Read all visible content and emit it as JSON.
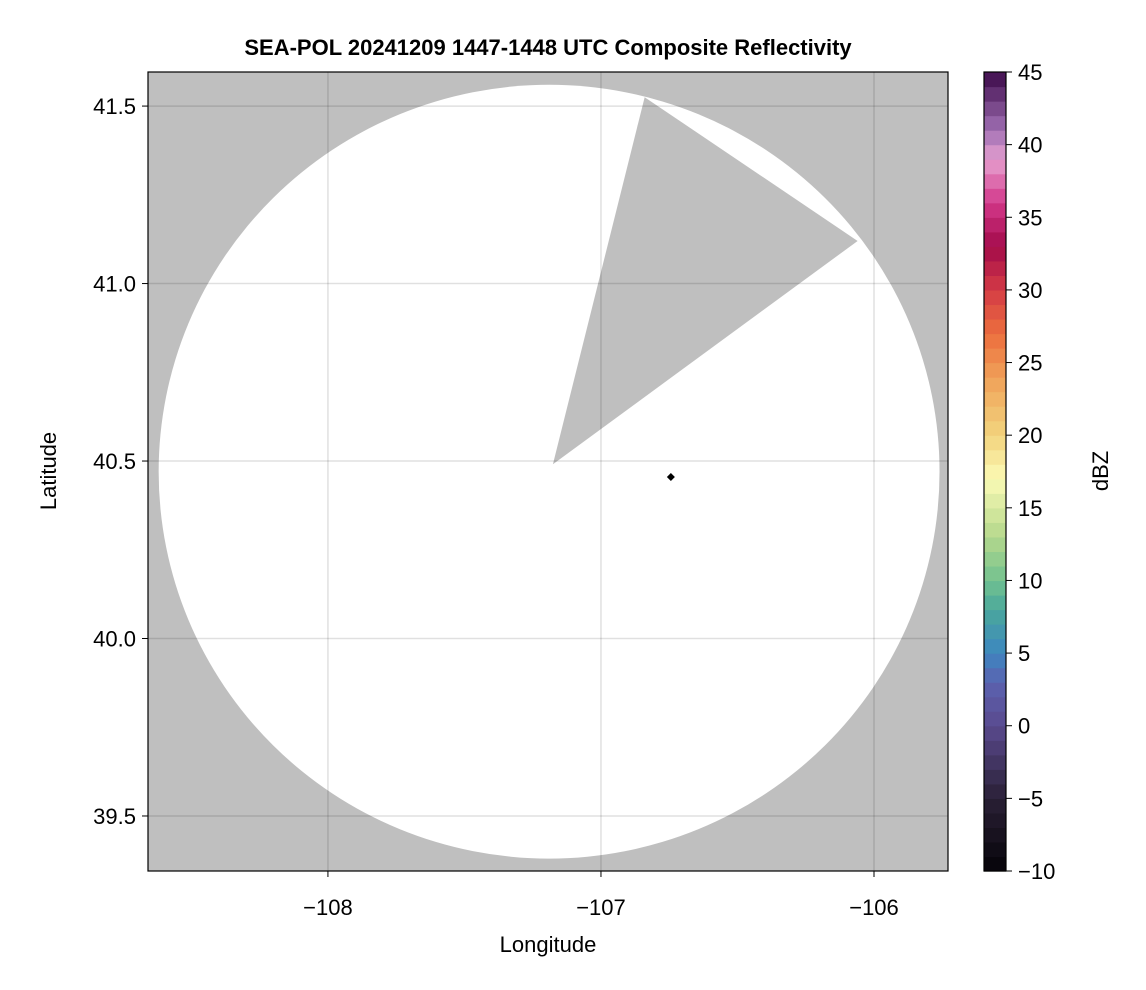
{
  "chart_data": {
    "type": "heatmap",
    "title": "SEA-POL 20241209 1447-1448 UTC Composite Reflectivity",
    "xlabel": "Longitude",
    "ylabel": "Latitude",
    "xlim": [
      -108.659,
      -105.729
    ],
    "ylim": [
      39.345,
      41.596
    ],
    "xticks": [
      -108,
      -107,
      -106
    ],
    "xtick_labels": [
      "−108",
      "−107",
      "−106"
    ],
    "yticks": [
      39.5,
      40.0,
      40.5,
      41.0,
      41.5
    ],
    "ytick_labels": [
      "39.5",
      "40.0",
      "40.5",
      "41.0",
      "41.5"
    ],
    "grid": true,
    "background_color": "#bfbfbf",
    "no_data_color": "#bfbfbf",
    "radar_coverage": {
      "fill": "#ffffff",
      "center": [
        -107.19,
        40.47
      ],
      "radius_lon": 1.43,
      "radius_lat": 1.09,
      "blocked_sector": [
        [
          -107.176,
          40.491
        ],
        [
          -106.84,
          41.525
        ],
        [
          -106.06,
          41.12
        ]
      ]
    },
    "marker": {
      "lon": -106.744,
      "lat": 40.455,
      "shape": "diamond",
      "color": "#000000"
    },
    "colorbar": {
      "label": "dBZ",
      "range": [
        -10,
        45
      ],
      "ticks": [
        -10,
        -5,
        0,
        5,
        10,
        15,
        20,
        25,
        30,
        35,
        40,
        45
      ],
      "tick_labels": [
        "−10",
        "−5",
        "0",
        "5",
        "10",
        "15",
        "20",
        "25",
        "30",
        "35",
        "40",
        "45"
      ],
      "bins": 55,
      "colormap_stops": [
        [
          -10,
          "#050308"
        ],
        [
          -5,
          "#2a2036"
        ],
        [
          0,
          "#5a4a8e"
        ],
        [
          3,
          "#5b62b0"
        ],
        [
          5,
          "#3d86c0"
        ],
        [
          8,
          "#4aa89c"
        ],
        [
          10,
          "#72c190"
        ],
        [
          13,
          "#b4d88c"
        ],
        [
          17,
          "#fbfab5"
        ],
        [
          20,
          "#f2d47e"
        ],
        [
          24,
          "#f0a058"
        ],
        [
          27,
          "#ec6e3e"
        ],
        [
          30,
          "#d43b45"
        ],
        [
          33,
          "#a30b4a"
        ],
        [
          36,
          "#d3378a"
        ],
        [
          39,
          "#e6a0d0"
        ],
        [
          41,
          "#a070b4"
        ],
        [
          45,
          "#3d0a4a"
        ]
      ]
    }
  }
}
